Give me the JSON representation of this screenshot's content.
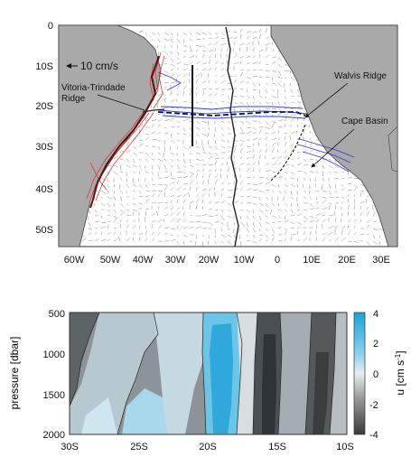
{
  "map": {
    "lat_labels": [
      "0",
      "10S",
      "20S",
      "30S",
      "40S",
      "50S"
    ],
    "lon_labels": [
      "60W",
      "50W",
      "40W",
      "30W",
      "20W",
      "10W",
      "0",
      "10E",
      "20E",
      "30E"
    ],
    "scale_label": "10 cm/s",
    "annotations": {
      "vitoria_1": "Vitoria-Trindade",
      "vitoria_2": "Ridge",
      "walvis": "Walvis Ridge",
      "cape": "Cape Basin"
    },
    "colors": {
      "land": "#a9a9a9",
      "ocean": "#ffffff",
      "vectors": "#8a8a8a",
      "westward_flow": "#d43c3c",
      "eastward_flow": "#3a43c8"
    }
  },
  "section": {
    "ylabel": "pressure [dbar]",
    "y_ticks": [
      "500",
      "1000",
      "1500",
      "2000"
    ],
    "x_ticks": [
      "30S",
      "25S",
      "20S",
      "15S",
      "10S"
    ],
    "colorbar_label": "u [cm s",
    "colorbar_exp": "-1",
    "colorbar_close": "]",
    "colorbar_ticks": [
      "4",
      "2",
      "0",
      "-2",
      "-4"
    ]
  }
}
